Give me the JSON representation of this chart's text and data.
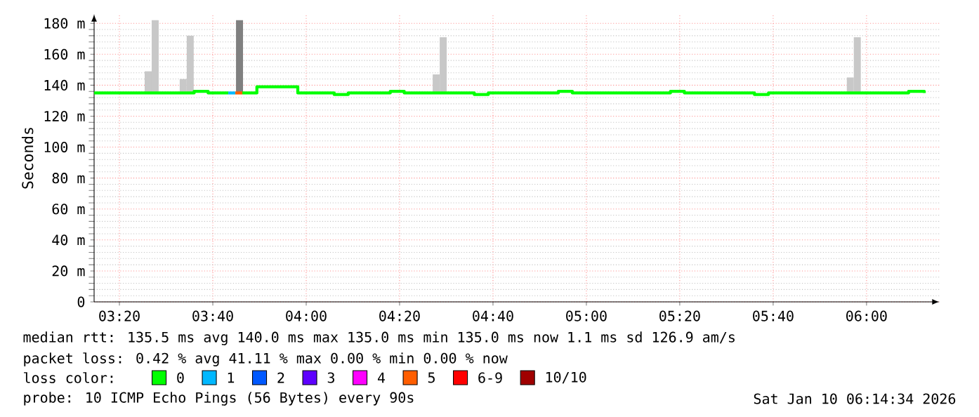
{
  "chart_data": {
    "type": "step",
    "ylabel": "Seconds",
    "legend_title": "loss color:",
    "legend": "bottom",
    "grid": true,
    "xlim": [
      3.243,
      6.261
    ],
    "ylim": [
      0,
      186
    ],
    "xticks": [
      {
        "value": 3.3333,
        "label": "03:20"
      },
      {
        "value": 3.6667,
        "label": "03:40"
      },
      {
        "value": 4,
        "label": "04:00"
      },
      {
        "value": 4.3333,
        "label": "04:20"
      },
      {
        "value": 4.6667,
        "label": "04:40"
      },
      {
        "value": 5,
        "label": "05:00"
      },
      {
        "value": 5.3333,
        "label": "05:20"
      },
      {
        "value": 5.6667,
        "label": "05:40"
      },
      {
        "value": 6,
        "label": "06:00"
      }
    ],
    "yticks": [
      0,
      {
        "value": 20,
        "label": "20 m"
      },
      {
        "value": 40,
        "label": "40 m"
      },
      {
        "value": 60,
        "label": "60 m"
      },
      {
        "value": 80,
        "label": "80 m"
      },
      {
        "value": 100,
        "label": "100 m"
      },
      {
        "value": 120,
        "label": "120 m"
      },
      {
        "value": 140,
        "label": "140 m"
      },
      {
        "value": 160,
        "label": "160 m"
      },
      {
        "value": 180,
        "label": "180 m"
      }
    ],
    "series": [
      {
        "type": "bar",
        "x": [
          3.436,
          3.461,
          3.561,
          3.586,
          3.762,
          4.464,
          4.489,
          5.942,
          5.967
        ],
        "base": [
          135,
          135,
          135,
          135,
          135,
          135,
          135,
          135,
          135
        ],
        "values": [
          14,
          47,
          9,
          37,
          47,
          12,
          36,
          10,
          36
        ],
        "colors": [
          "#c8c8c8",
          "#c8c8c8",
          "#c8c8c8",
          "#c8c8c8",
          "#808080",
          "#c8c8c8",
          "#c8c8c8",
          "#c8c8c8",
          "#c8c8c8"
        ]
      },
      {
        "name": "0",
        "color": "#00ff00",
        "x": [
          3.243,
          3.55,
          3.6,
          3.65,
          3.722,
          3.73,
          3.772,
          3.824,
          3.97,
          4.1,
          4.15,
          4.3,
          4.35,
          4.6,
          4.65,
          4.9,
          4.95,
          5.3,
          5.35,
          5.6,
          5.65,
          6.15,
          6.206
        ],
        "values": [
          135,
          135,
          136,
          135,
          135,
          null,
          135,
          139,
          135,
          134,
          135,
          136,
          135,
          134,
          135,
          136,
          135,
          136,
          135,
          134,
          135,
          136,
          135
        ]
      },
      {
        "name": "1",
        "color": "#00b8ff",
        "x": [
          3.722,
          3.747
        ],
        "values": [
          135,
          135
        ]
      },
      {
        "name": "2",
        "color": "#0059ff"
      },
      {
        "name": "3",
        "color": "#5e00ff"
      },
      {
        "name": "4",
        "color": "#ff00ff"
      },
      {
        "name": "5",
        "color": "#ff5e00",
        "x": [
          3.747,
          3.772
        ],
        "values": [
          135,
          135
        ]
      },
      {
        "name": "6-9",
        "color": "#ff0000"
      },
      {
        "name": "10/10",
        "color": "#a00000"
      }
    ],
    "annotations": [
      "median rtt:  135.5 ms avg  140.0 ms max  135.0 ms min  135.0 ms now  1.1 ms sd  126.9   am/s",
      "packet loss: 0.42 % avg  41.11 % max  0.00 % min  0.00 % now",
      "probe:       10 ICMP Echo Pings (56 Bytes) every 90s",
      "Sat Jan 10 06:14:34 2026"
    ]
  }
}
